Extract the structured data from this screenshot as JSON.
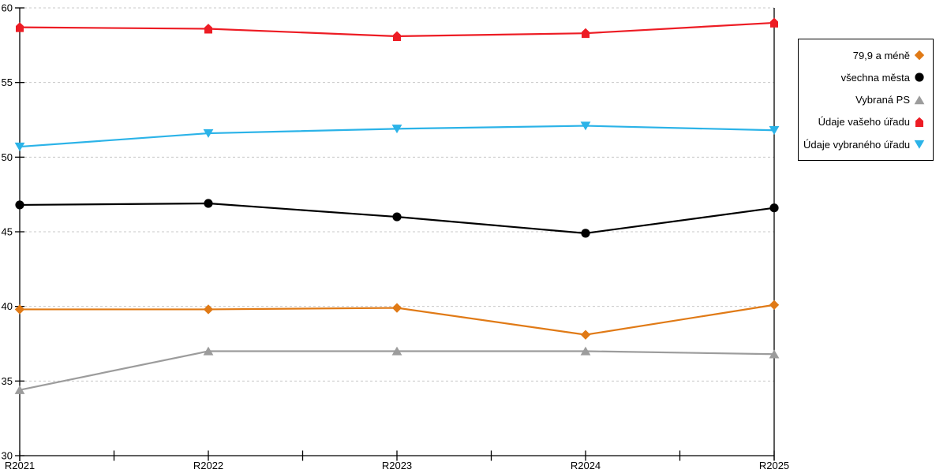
{
  "chart_data": {
    "type": "line",
    "title": "",
    "xlabel": "",
    "ylabel": "",
    "categories": [
      "R2021",
      "R2022",
      "R2023",
      "R2024",
      "R2025"
    ],
    "series": [
      {
        "name": "79,9 a méně",
        "marker": "diamond",
        "color": "#E07A16",
        "values": [
          39.8,
          39.8,
          39.9,
          38.1,
          40.1
        ]
      },
      {
        "name": "všechna města",
        "marker": "circle",
        "color": "#000000",
        "values": [
          46.8,
          46.9,
          46.0,
          44.9,
          46.6
        ]
      },
      {
        "name": "Vybraná PS",
        "marker": "triangle-up",
        "color": "#9C9C9C",
        "values": [
          34.4,
          37.0,
          37.0,
          37.0,
          36.8
        ]
      },
      {
        "name": "Údaje vašeho úřadu",
        "marker": "pentagon",
        "color": "#ED1C24",
        "values": [
          58.7,
          58.6,
          58.1,
          58.3,
          59.0
        ]
      },
      {
        "name": "Údaje vybraného úřadu",
        "marker": "triangle-down",
        "color": "#2BB3E8",
        "values": [
          50.7,
          51.6,
          51.9,
          52.1,
          51.8
        ]
      }
    ],
    "ylim": [
      30,
      60
    ],
    "yticks": [
      30,
      35,
      40,
      45,
      50,
      55,
      60
    ],
    "grid": {
      "horizontal": true,
      "style": "dotted",
      "color": "#C8C8C8"
    },
    "axis_color": "#000000",
    "background": "#FFFFFF",
    "legend": {
      "position": "top-right",
      "border": true,
      "entries_right_aligned": true
    }
  }
}
